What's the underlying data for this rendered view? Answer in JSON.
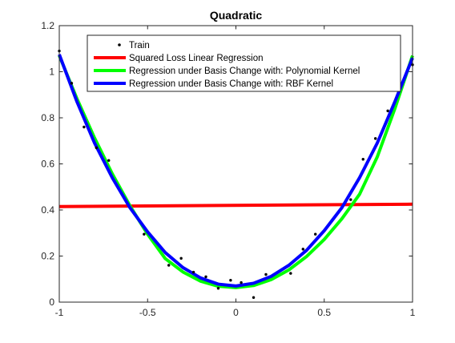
{
  "chart_data": {
    "type": "line",
    "title": "Quadratic",
    "xlabel": "",
    "ylabel": "",
    "xlim": [
      -1,
      1
    ],
    "ylim": [
      0,
      1.2
    ],
    "x_ticks": [
      {
        "value": -1,
        "label": "-1"
      },
      {
        "value": -0.5,
        "label": "-0.5"
      },
      {
        "value": 0,
        "label": "0"
      },
      {
        "value": 0.5,
        "label": "0.5"
      },
      {
        "value": 1,
        "label": "1"
      }
    ],
    "y_ticks": [
      {
        "value": 0,
        "label": "0"
      },
      {
        "value": 0.2,
        "label": "0.2"
      },
      {
        "value": 0.4,
        "label": "0.4"
      },
      {
        "value": 0.6,
        "label": "0.6"
      },
      {
        "value": 0.8,
        "label": "0.8"
      },
      {
        "value": 1,
        "label": "1"
      },
      {
        "value": 1.2,
        "label": "1.2"
      }
    ],
    "grid": false,
    "legend_position": "top-right",
    "series": [
      {
        "name": "Train",
        "style": "dots",
        "color": "#000000",
        "x": [
          -1.0,
          -0.93,
          -0.86,
          -0.79,
          -0.72,
          -0.52,
          -0.38,
          -0.31,
          -0.24,
          -0.17,
          -0.1,
          -0.03,
          0.03,
          0.1,
          0.17,
          0.31,
          0.38,
          0.45,
          0.65,
          0.72,
          0.79,
          0.86,
          1.0
        ],
        "y": [
          1.09,
          0.95,
          0.76,
          0.67,
          0.615,
          0.295,
          0.16,
          0.19,
          0.13,
          0.11,
          0.06,
          0.095,
          0.085,
          0.02,
          0.12,
          0.125,
          0.23,
          0.295,
          0.445,
          0.62,
          0.71,
          0.83,
          1.03
        ]
      },
      {
        "name": "Squared Loss Linear Regression",
        "style": "line",
        "color": "#ff0000",
        "x": [
          -1,
          1
        ],
        "y": [
          0.415,
          0.425
        ]
      },
      {
        "name": "Regression under Basis Change with: Polynomial Kernel",
        "style": "line",
        "color": "#00ff00",
        "x": [
          -1,
          -0.9,
          -0.8,
          -0.7,
          -0.6,
          -0.5,
          -0.4,
          -0.3,
          -0.2,
          -0.1,
          0,
          0.1,
          0.2,
          0.3,
          0.4,
          0.5,
          0.6,
          0.7,
          0.8,
          0.9,
          1
        ],
        "y": [
          1.07,
          0.883,
          0.712,
          0.557,
          0.418,
          0.295,
          0.189,
          0.131,
          0.091,
          0.069,
          0.063,
          0.072,
          0.098,
          0.14,
          0.198,
          0.272,
          0.362,
          0.468,
          0.63,
          0.84,
          1.07
        ]
      },
      {
        "name": "Regression under Basis Change with: RBF Kernel",
        "style": "line",
        "color": "#0000ff",
        "x": [
          -1,
          -0.9,
          -0.8,
          -0.7,
          -0.6,
          -0.5,
          -0.4,
          -0.3,
          -0.2,
          -0.1,
          0,
          0.1,
          0.2,
          0.3,
          0.4,
          0.5,
          0.6,
          0.7,
          0.8,
          0.9,
          1
        ],
        "y": [
          1.075,
          0.87,
          0.69,
          0.54,
          0.41,
          0.305,
          0.215,
          0.15,
          0.105,
          0.078,
          0.07,
          0.082,
          0.112,
          0.16,
          0.225,
          0.31,
          0.41,
          0.54,
          0.69,
          0.87,
          1.06
        ]
      }
    ]
  }
}
